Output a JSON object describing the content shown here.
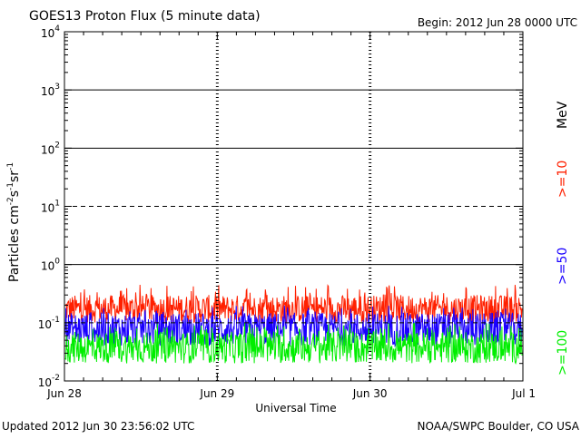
{
  "header": {
    "title": "GOES13 Proton Flux (5 minute data)",
    "begin": "Begin:  2012 Jun 28  0000 UTC"
  },
  "footer": {
    "updated": "Updated 2012 Jun 30 23:56:02 UTC",
    "credit": "NOAA/SWPC Boulder, CO USA"
  },
  "colors": {
    "ge10": "#ff2000",
    "ge50": "#1a00ff",
    "ge100": "#00ee00",
    "frame": "#000000"
  },
  "chart_data": {
    "type": "line",
    "title": "GOES13 Proton Flux (5 minute data)",
    "xlabel": "Universal Time",
    "ylabel_parts": [
      "Particles cm",
      "-2",
      "s",
      "-1",
      "sr",
      "-1"
    ],
    "y_scale": "log",
    "ylim": [
      0.01,
      10000
    ],
    "y_ticks": [
      {
        "base": "10",
        "exp": "4",
        "value": 10000
      },
      {
        "base": "10",
        "exp": "3",
        "value": 1000
      },
      {
        "base": "10",
        "exp": "2",
        "value": 100
      },
      {
        "base": "10",
        "exp": "1",
        "value": 10
      },
      {
        "base": "10",
        "exp": "0",
        "value": 1
      },
      {
        "base": "10",
        "exp": "-1",
        "value": 0.1
      },
      {
        "base": "10",
        "exp": "-2",
        "value": 0.01
      }
    ],
    "reference_lines": [
      {
        "value": 1000,
        "style": "solid"
      },
      {
        "value": 100,
        "style": "solid"
      },
      {
        "value": 10,
        "style": "dashed"
      },
      {
        "value": 1,
        "style": "solid"
      },
      {
        "value": 0.1,
        "style": "dashed"
      }
    ],
    "x_ticks": [
      "Jun 28",
      "Jun 29",
      "Jun 30",
      "Jul 1"
    ],
    "xlim": [
      "2012-06-28 00:00",
      "2012-07-01 00:00"
    ],
    "unit_label": "MeV",
    "series": [
      {
        "name": ">=10",
        "color": "#ff2000",
        "level_min": 0.1,
        "level_max": 0.3,
        "spike_max": 0.45
      },
      {
        "name": ">=50",
        "color": "#1a00ff",
        "level_min": 0.04,
        "level_max": 0.15,
        "spike_max": 0.2
      },
      {
        "name": ">=100",
        "color": "#00ee00",
        "level_min": 0.02,
        "level_max": 0.07,
        "spike_max": 0.1
      }
    ]
  }
}
